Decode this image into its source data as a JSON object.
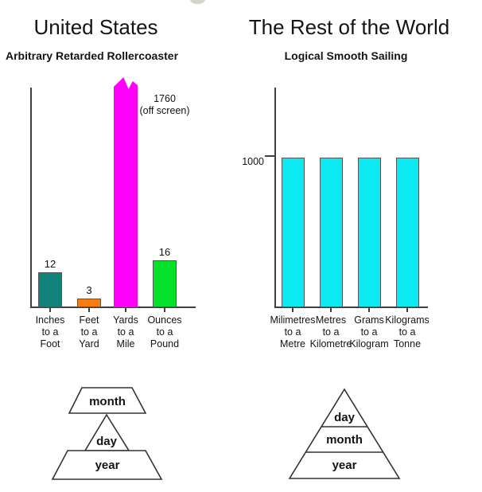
{
  "decoration": {
    "top_circle_color": "#d4d4cf"
  },
  "chart_data": [
    {
      "type": "bar",
      "title": "United States",
      "subtitle": "Arbitrary Retarded Rollercoaster",
      "categories": [
        "Inches\nto a\nFoot",
        "Feet\nto a\nYard",
        "Yards\nto a\nMile",
        "Ounces\nto a\nPound"
      ],
      "values": [
        12,
        3,
        1760,
        16
      ],
      "bar_colors": [
        "#12817a",
        "#fa7c10",
        "#ff00fa",
        "#05e02b"
      ],
      "bar_value_labels": [
        "12",
        "3",
        "",
        "16"
      ],
      "offscreen_bar_index": 2,
      "offscreen_label": "1760\n(off screen)",
      "axis_visible_max": 79,
      "grid": false,
      "legend": false
    },
    {
      "type": "bar",
      "title": "The Rest of the World",
      "subtitle": "Logical Smooth Sailing",
      "categories": [
        "Milimetres\nto a\nMetre",
        "Metres\nto a\nKilometre",
        "Grams\nto a\nKilogram",
        "Kilograms\nto a\nTonne"
      ],
      "values": [
        1000,
        1000,
        1000,
        1000
      ],
      "bar_colors": [
        "#0ce9f0",
        "#0ce9f0",
        "#0ce9f0",
        "#0ce9f0"
      ],
      "bar_value_labels": [
        "",
        "",
        "",
        ""
      ],
      "ytick_label": "1000",
      "ytick_value": 1000,
      "grid": false,
      "legend": false
    }
  ],
  "pyramids": {
    "left": {
      "slices": [
        "month",
        "day",
        "year"
      ]
    },
    "right": {
      "slices": [
        "day",
        "month",
        "year"
      ]
    }
  }
}
